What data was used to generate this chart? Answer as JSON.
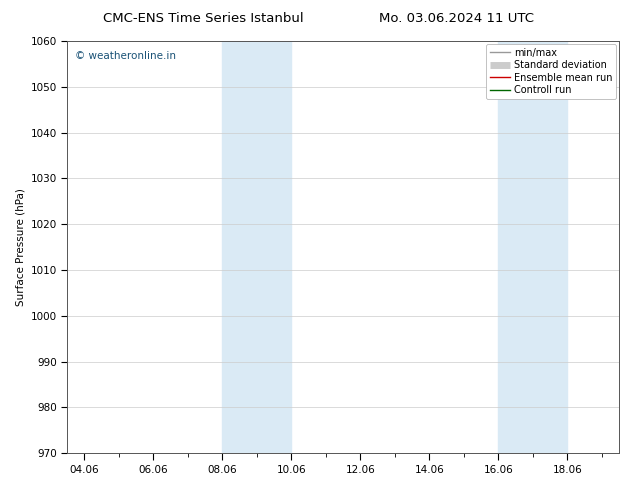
{
  "title_left": "CMC-ENS Time Series Istanbul",
  "title_right": "Mo. 03.06.2024 11 UTC",
  "ylabel": "Surface Pressure (hPa)",
  "ylim": [
    970,
    1060
  ],
  "yticks": [
    970,
    980,
    990,
    1000,
    1010,
    1020,
    1030,
    1040,
    1050,
    1060
  ],
  "xticks": [
    "04.06",
    "06.06",
    "08.06",
    "10.06",
    "12.06",
    "14.06",
    "16.06",
    "18.06"
  ],
  "xtick_positions": [
    0,
    2,
    4,
    6,
    8,
    10,
    12,
    14
  ],
  "xlim": [
    -0.5,
    15.5
  ],
  "shaded_bands": [
    {
      "x_start": 4.0,
      "x_end": 6.0
    },
    {
      "x_start": 12.0,
      "x_end": 14.0
    }
  ],
  "shaded_color": "#daeaf5",
  "watermark": "© weatheronline.in",
  "watermark_color": "#1a5276",
  "legend_entries": [
    {
      "label": "min/max",
      "color": "#999999",
      "lw": 1.0,
      "type": "line"
    },
    {
      "label": "Standard deviation",
      "color": "#cccccc",
      "lw": 5,
      "type": "band"
    },
    {
      "label": "Ensemble mean run",
      "color": "#cc0000",
      "lw": 1.0,
      "type": "line"
    },
    {
      "label": "Controll run",
      "color": "#006600",
      "lw": 1.0,
      "type": "line"
    }
  ],
  "bg_color": "#ffffff",
  "grid_color": "#cccccc",
  "font_size": 7.5,
  "title_font_size": 9.5
}
